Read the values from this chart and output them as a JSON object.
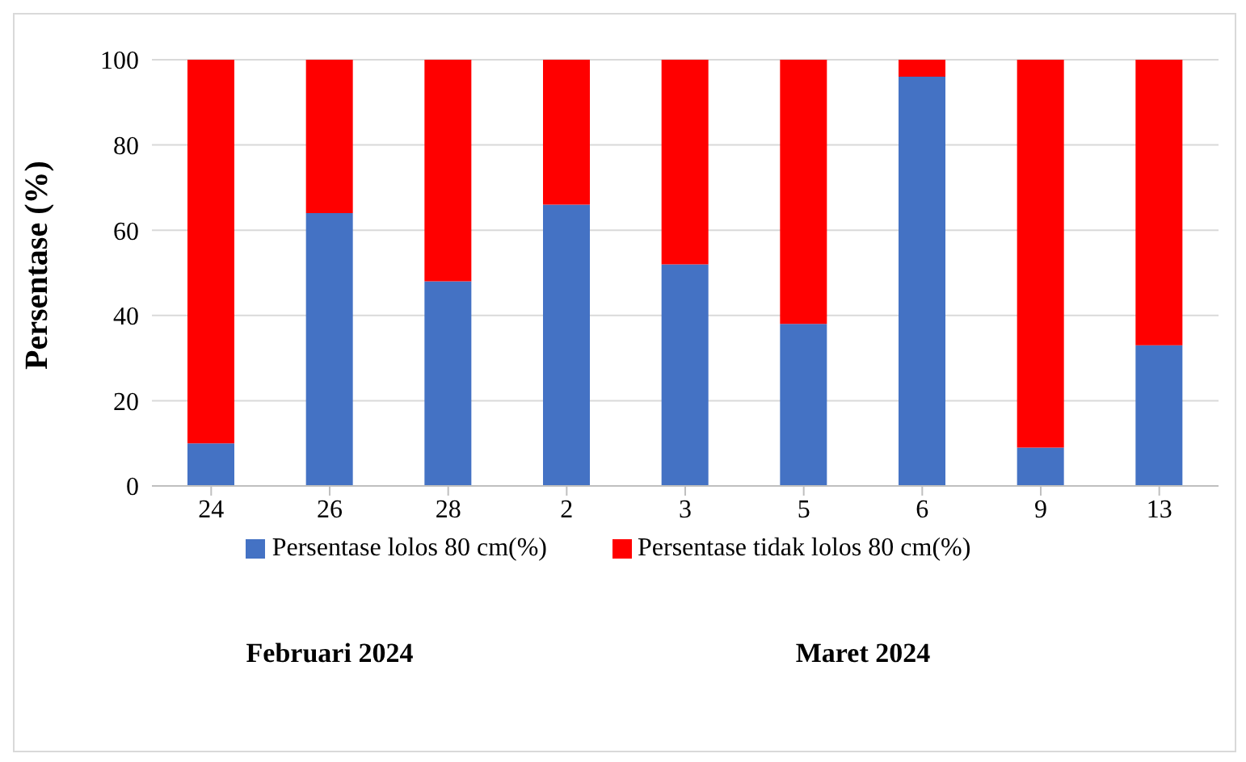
{
  "chart_data": {
    "type": "bar",
    "stacked": true,
    "ylabel": "Persentase (%)",
    "categories": [
      "24",
      "26",
      "28",
      "2",
      "3",
      "5",
      "6",
      "9",
      "13"
    ],
    "series": [
      {
        "name": "Persentase lolos 80 cm(%)",
        "color": "#4472c4",
        "values": [
          10,
          64,
          48,
          66,
          52,
          38,
          96,
          9,
          33
        ]
      },
      {
        "name": "Persentase tidak lolos 80 cm(%)",
        "color": "#ff0000",
        "values": [
          90,
          36,
          52,
          34,
          48,
          62,
          4,
          91,
          67
        ]
      }
    ],
    "ylim": [
      0,
      100
    ],
    "yticks": [
      0,
      20,
      40,
      60,
      80,
      100
    ],
    "grid": "y",
    "legend": "bottom",
    "annotations": [
      "Februari 2024",
      "Maret 2024"
    ]
  }
}
